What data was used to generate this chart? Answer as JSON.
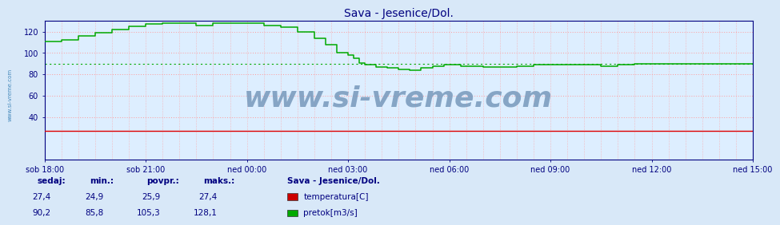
{
  "title": "Sava - Jesenice/Dol.",
  "title_color": "#000080",
  "title_fontsize": 10,
  "bg_color": "#d8e8f8",
  "plot_bg_color": "#ddeeff",
  "grid_color": "#ff9999",
  "x_tick_labels": [
    "sob 18:00",
    "sob 21:00",
    "ned 00:00",
    "ned 03:00",
    "ned 06:00",
    "ned 09:00",
    "ned 12:00",
    "ned 15:00"
  ],
  "x_tick_positions": [
    0,
    36,
    72,
    108,
    144,
    180,
    216,
    252
  ],
  "x_total_points": 252,
  "ylim": [
    0,
    130
  ],
  "yticks": [
    40,
    60,
    80,
    100,
    120
  ],
  "tick_color": "#000080",
  "axis_color": "#000080",
  "spine_color": "#000080",
  "watermark": "www.si-vreme.com",
  "watermark_color": "#7799bb",
  "watermark_fontsize": 26,
  "left_label": "www.si-vreme.com",
  "left_label_color": "#4488bb",
  "legend_title": "Sava - Jesenice/Dol.",
  "legend_title_color": "#000080",
  "legend_items": [
    {
      "label": "temperatura[C]",
      "color": "#cc0000"
    },
    {
      "label": "pretok[m3/s]",
      "color": "#00aa00"
    }
  ],
  "stats_headers": [
    "sedaj:",
    "min.:",
    "povpr.:",
    "maks.:"
  ],
  "stats_rows": [
    [
      "27,4",
      "24,9",
      "25,9",
      "27,4"
    ],
    [
      "90,2",
      "85,8",
      "105,3",
      "128,1"
    ]
  ],
  "stats_color": "#000080",
  "temperatura_color": "#dd0000",
  "pretok_color": "#00aa00",
  "pretok_avg_y": 90,
  "temperatura_base": 27,
  "pretok_segments": [
    {
      "x_start": 0,
      "x_end": 6,
      "y": 111
    },
    {
      "x_start": 6,
      "x_end": 12,
      "y": 112
    },
    {
      "x_start": 12,
      "x_end": 18,
      "y": 116
    },
    {
      "x_start": 18,
      "x_end": 24,
      "y": 119
    },
    {
      "x_start": 24,
      "x_end": 30,
      "y": 122
    },
    {
      "x_start": 30,
      "x_end": 36,
      "y": 125
    },
    {
      "x_start": 36,
      "x_end": 42,
      "y": 127
    },
    {
      "x_start": 42,
      "x_end": 54,
      "y": 128
    },
    {
      "x_start": 54,
      "x_end": 60,
      "y": 126
    },
    {
      "x_start": 60,
      "x_end": 66,
      "y": 128
    },
    {
      "x_start": 66,
      "x_end": 78,
      "y": 128
    },
    {
      "x_start": 78,
      "x_end": 84,
      "y": 126
    },
    {
      "x_start": 84,
      "x_end": 90,
      "y": 124
    },
    {
      "x_start": 90,
      "x_end": 96,
      "y": 120
    },
    {
      "x_start": 96,
      "x_end": 100,
      "y": 114
    },
    {
      "x_start": 100,
      "x_end": 104,
      "y": 108
    },
    {
      "x_start": 104,
      "x_end": 108,
      "y": 100
    },
    {
      "x_start": 108,
      "x_end": 110,
      "y": 98
    },
    {
      "x_start": 110,
      "x_end": 112,
      "y": 95
    },
    {
      "x_start": 112,
      "x_end": 114,
      "y": 91
    },
    {
      "x_start": 114,
      "x_end": 118,
      "y": 89
    },
    {
      "x_start": 118,
      "x_end": 122,
      "y": 87
    },
    {
      "x_start": 122,
      "x_end": 126,
      "y": 86
    },
    {
      "x_start": 126,
      "x_end": 130,
      "y": 85
    },
    {
      "x_start": 130,
      "x_end": 134,
      "y": 84
    },
    {
      "x_start": 134,
      "x_end": 138,
      "y": 86
    },
    {
      "x_start": 138,
      "x_end": 142,
      "y": 88
    },
    {
      "x_start": 142,
      "x_end": 148,
      "y": 89
    },
    {
      "x_start": 148,
      "x_end": 156,
      "y": 88
    },
    {
      "x_start": 156,
      "x_end": 162,
      "y": 87
    },
    {
      "x_start": 162,
      "x_end": 168,
      "y": 87
    },
    {
      "x_start": 168,
      "x_end": 174,
      "y": 88
    },
    {
      "x_start": 174,
      "x_end": 180,
      "y": 89
    },
    {
      "x_start": 180,
      "x_end": 186,
      "y": 89
    },
    {
      "x_start": 186,
      "x_end": 192,
      "y": 89
    },
    {
      "x_start": 192,
      "x_end": 198,
      "y": 89
    },
    {
      "x_start": 198,
      "x_end": 204,
      "y": 88
    },
    {
      "x_start": 204,
      "x_end": 210,
      "y": 89
    },
    {
      "x_start": 210,
      "x_end": 216,
      "y": 90
    },
    {
      "x_start": 216,
      "x_end": 252,
      "y": 90
    }
  ]
}
